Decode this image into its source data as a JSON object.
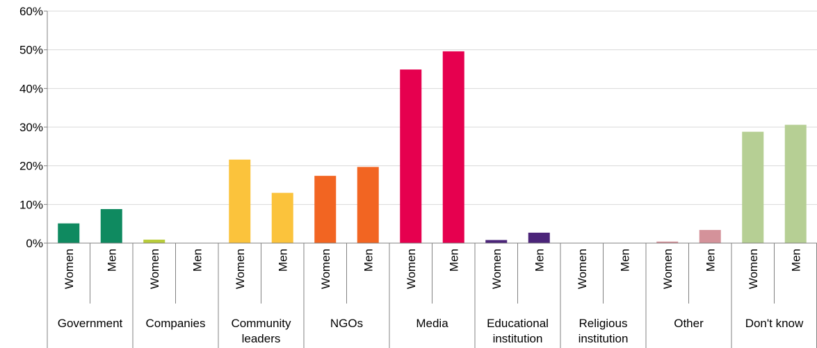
{
  "chart_data": {
    "type": "bar",
    "ylim": [
      0,
      60
    ],
    "yticks": [
      0,
      10,
      20,
      30,
      40,
      50,
      60
    ],
    "ytick_labels": [
      "0%",
      "10%",
      "20%",
      "30%",
      "40%",
      "50%",
      "60%"
    ],
    "grid": true,
    "legend": "none",
    "groups": [
      {
        "label": "Government",
        "color": "#0f8a60",
        "bars": [
          {
            "label": "Women",
            "value": 5.1
          },
          {
            "label": "Men",
            "value": 8.8
          }
        ]
      },
      {
        "label": "Companies",
        "color": "#b8cc3a",
        "bars": [
          {
            "label": "Women",
            "value": 0.9
          },
          {
            "label": "Men",
            "value": 0
          }
        ]
      },
      {
        "label": "Community leaders",
        "color": "#fbc33c",
        "bars": [
          {
            "label": "Women",
            "value": 21.6
          },
          {
            "label": "Men",
            "value": 13.0
          }
        ]
      },
      {
        "label": "NGOs",
        "color": "#f26522",
        "bars": [
          {
            "label": "Women",
            "value": 17.4
          },
          {
            "label": "Men",
            "value": 19.7
          }
        ]
      },
      {
        "label": "Media",
        "color": "#e6004f",
        "bars": [
          {
            "label": "Women",
            "value": 44.9
          },
          {
            "label": "Men",
            "value": 49.6
          }
        ]
      },
      {
        "label": "Educational institution",
        "color": "#4b2479",
        "bars": [
          {
            "label": "Women",
            "value": 0.8
          },
          {
            "label": "Men",
            "value": 2.7
          }
        ]
      },
      {
        "label": "Religious institution",
        "color": "#999999",
        "bars": [
          {
            "label": "Women",
            "value": 0
          },
          {
            "label": "Men",
            "value": 0
          }
        ]
      },
      {
        "label": "Other",
        "color": "#d4929a",
        "bars": [
          {
            "label": "Women",
            "value": 0.4
          },
          {
            "label": "Men",
            "value": 3.4
          }
        ]
      },
      {
        "label": "Don't know",
        "color": "#b6cf94",
        "bars": [
          {
            "label": "Women",
            "value": 28.8
          },
          {
            "label": "Men",
            "value": 30.6
          }
        ]
      }
    ]
  }
}
